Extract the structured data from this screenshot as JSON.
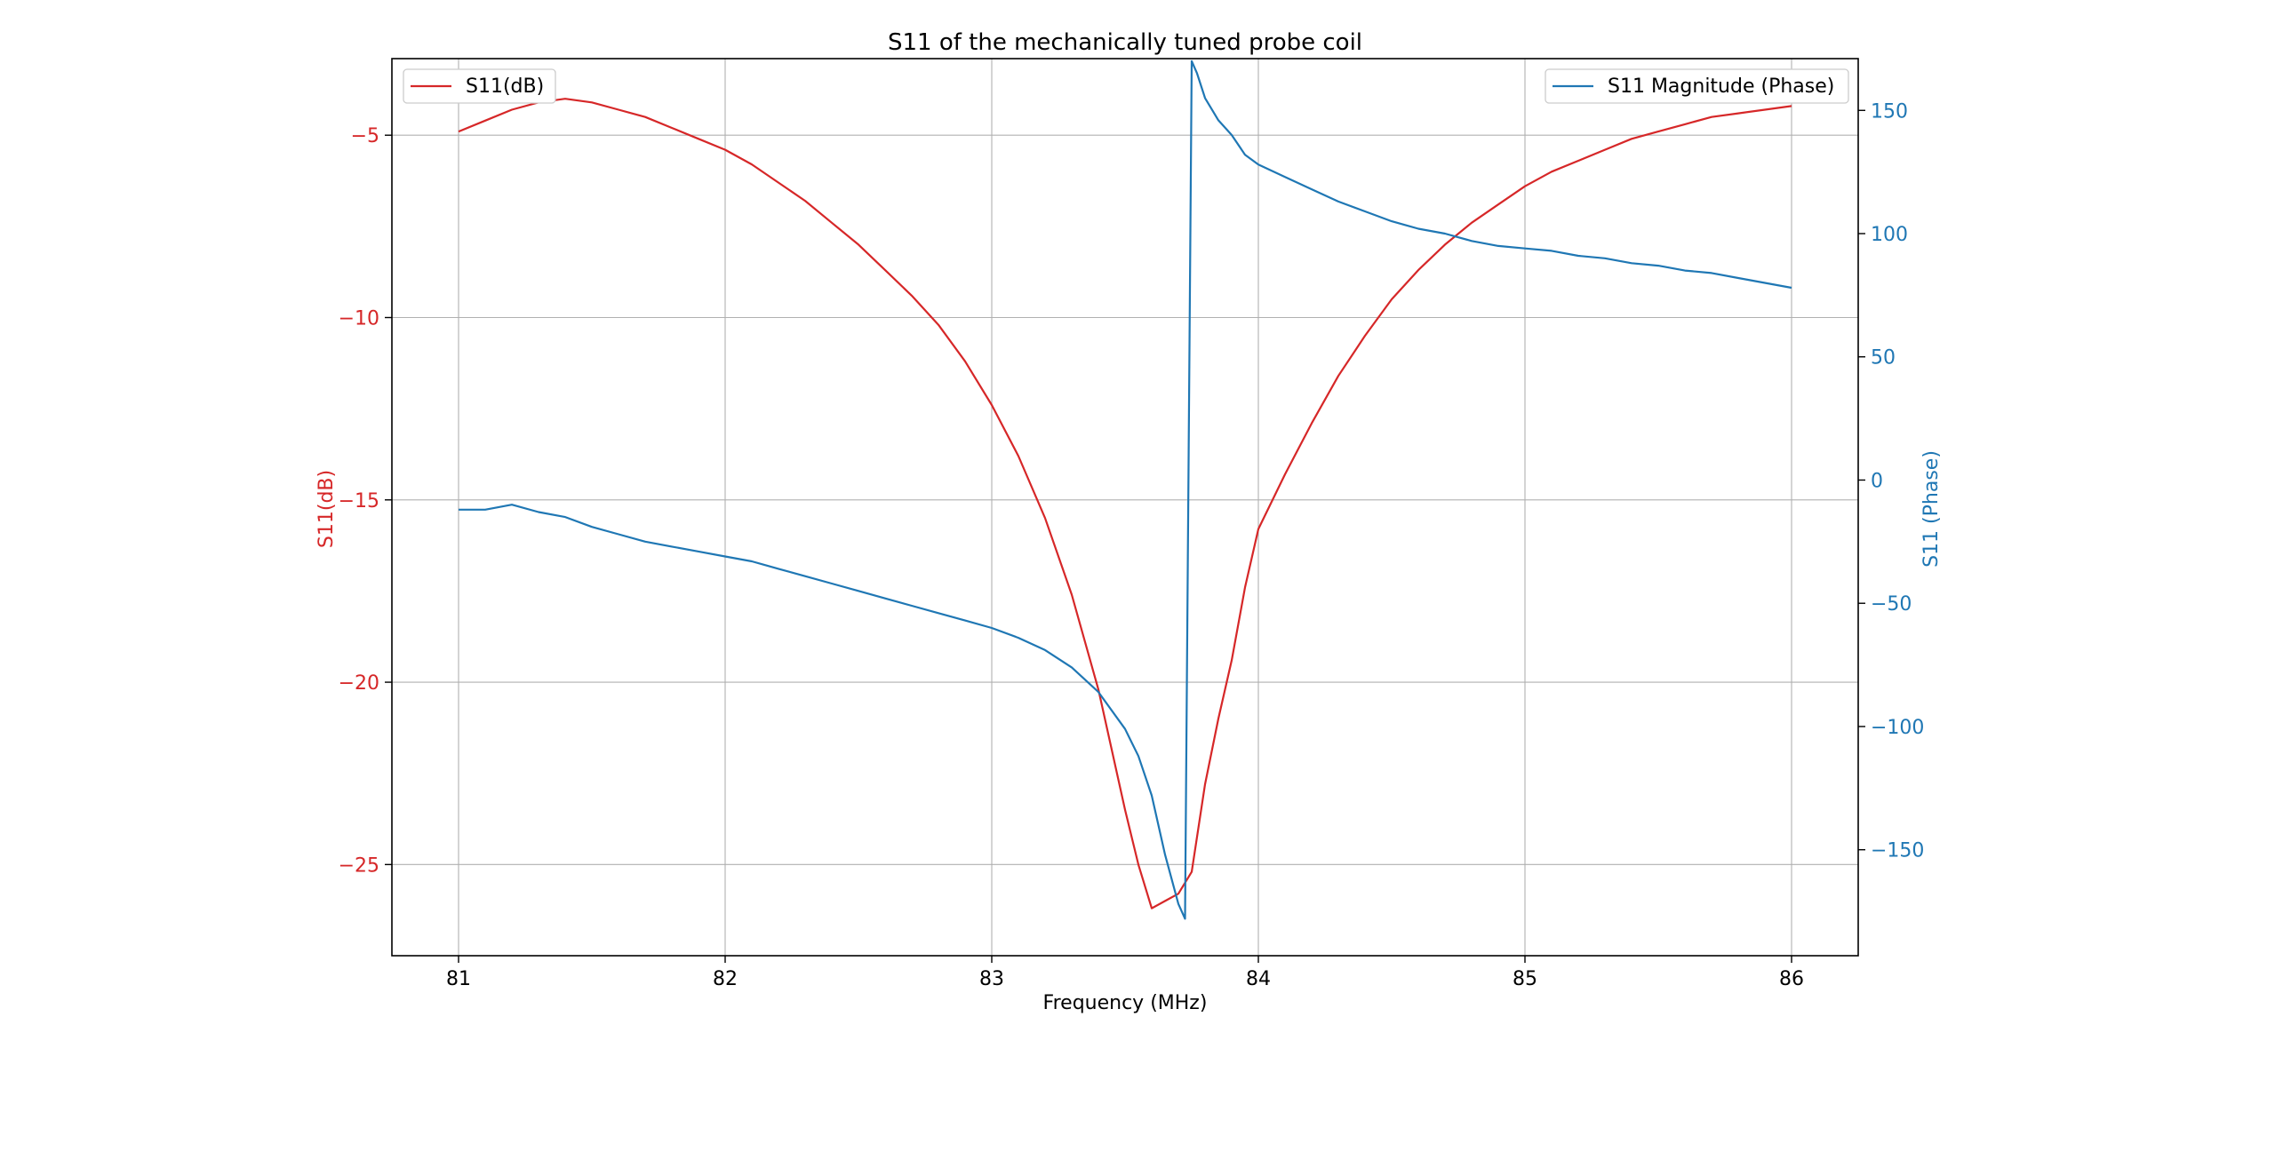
{
  "chart_data": {
    "type": "line",
    "title": "S11 of the mechanically tuned probe coil",
    "xlabel": "Frequency (MHz)",
    "ylabel_left": "S11(dB)",
    "ylabel_right": "S11 (Phase)",
    "xlim": [
      80.75,
      86.25
    ],
    "ylim_left": [
      -27.5,
      -2.9
    ],
    "ylim_right": [
      -193,
      171
    ],
    "x_ticks": [
      81,
      82,
      83,
      84,
      85,
      86
    ],
    "y_ticks_left": [
      -5,
      -10,
      -15,
      -20,
      -25
    ],
    "y_ticks_right": [
      150,
      100,
      50,
      0,
      -50,
      -100,
      -150
    ],
    "grid": true,
    "colors": {
      "left": "#d62728",
      "right": "#1f77b4"
    },
    "series": [
      {
        "name": "S11(dB)",
        "axis": "left",
        "x": [
          81.0,
          81.1,
          81.2,
          81.3,
          81.4,
          81.5,
          81.6,
          81.7,
          81.8,
          81.9,
          82.0,
          82.1,
          82.2,
          82.3,
          82.4,
          82.5,
          82.6,
          82.7,
          82.8,
          82.9,
          83.0,
          83.1,
          83.2,
          83.3,
          83.4,
          83.5,
          83.55,
          83.6,
          83.65,
          83.7,
          83.75,
          83.8,
          83.85,
          83.9,
          83.95,
          84.0,
          84.1,
          84.2,
          84.3,
          84.4,
          84.5,
          84.6,
          84.7,
          84.8,
          84.9,
          85.0,
          85.1,
          85.2,
          85.3,
          85.4,
          85.5,
          85.6,
          85.7,
          85.8,
          85.9,
          86.0
        ],
        "y": [
          -4.9,
          -4.6,
          -4.3,
          -4.1,
          -4.0,
          -4.1,
          -4.3,
          -4.5,
          -4.8,
          -5.1,
          -5.4,
          -5.8,
          -6.3,
          -6.8,
          -7.4,
          -8.0,
          -8.7,
          -9.4,
          -10.2,
          -11.2,
          -12.4,
          -13.8,
          -15.5,
          -17.6,
          -20.2,
          -23.5,
          -25.0,
          -26.2,
          -26.0,
          -25.8,
          -25.2,
          -22.8,
          -21.0,
          -19.4,
          -17.4,
          -15.8,
          -14.3,
          -12.9,
          -11.6,
          -10.5,
          -9.5,
          -8.7,
          -8.0,
          -7.4,
          -6.9,
          -6.4,
          -6.0,
          -5.7,
          -5.4,
          -5.1,
          -4.9,
          -4.7,
          -4.5,
          -4.4,
          -4.3,
          -4.2
        ]
      },
      {
        "name": "S11 Magnitude (Phase)",
        "axis": "right",
        "x": [
          81.0,
          81.1,
          81.2,
          81.3,
          81.4,
          81.5,
          81.6,
          81.7,
          81.8,
          81.9,
          82.0,
          82.1,
          82.2,
          82.3,
          82.4,
          82.5,
          82.6,
          82.7,
          82.8,
          82.9,
          83.0,
          83.1,
          83.2,
          83.3,
          83.4,
          83.5,
          83.55,
          83.6,
          83.65,
          83.7,
          83.725,
          83.75,
          83.77,
          83.8,
          83.85,
          83.9,
          83.95,
          84.0,
          84.1,
          84.2,
          84.3,
          84.4,
          84.5,
          84.6,
          84.7,
          84.8,
          84.9,
          85.0,
          85.1,
          85.2,
          85.3,
          85.4,
          85.5,
          85.6,
          85.7,
          85.8,
          85.9,
          86.0
        ],
        "y": [
          -12,
          -12,
          -10,
          -13,
          -15,
          -19,
          -22,
          -25,
          -27,
          -29,
          -31,
          -33,
          -36,
          -39,
          -42,
          -45,
          -48,
          -51,
          -54,
          -57,
          -60,
          -64,
          -69,
          -76,
          -86,
          -101,
          -112,
          -128,
          -152,
          -172,
          -178,
          170,
          165,
          155,
          146,
          140,
          132,
          128,
          123,
          118,
          113,
          109,
          105,
          102,
          100,
          97,
          95,
          94,
          93,
          91,
          90,
          88,
          87,
          85,
          84,
          82,
          80,
          78
        ]
      }
    ],
    "legend": [
      {
        "label": "S11(dB)",
        "position": "top-left"
      },
      {
        "label": "S11 Magnitude (Phase)",
        "position": "top-right"
      }
    ]
  }
}
